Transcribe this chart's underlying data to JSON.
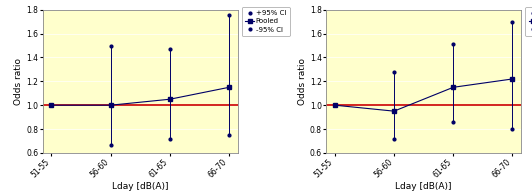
{
  "categories": [
    "51-55",
    "56-60",
    "61-65",
    "66-70"
  ],
  "chart1": {
    "pooled": [
      1.0,
      1.0,
      1.05,
      1.15
    ],
    "ci_upper": [
      1.0,
      1.5,
      1.47,
      1.76
    ],
    "ci_lower": [
      1.0,
      0.67,
      0.72,
      0.75
    ]
  },
  "chart2": {
    "pooled": [
      1.0,
      0.95,
      1.15,
      1.22
    ],
    "ci_upper": [
      1.0,
      1.28,
      1.51,
      1.7
    ],
    "ci_lower": [
      1.0,
      0.72,
      0.86,
      0.8
    ]
  },
  "ylabel": "Odds ratio",
  "xlabel": "Lday [dB(A)]",
  "ylim": [
    0.6,
    1.8
  ],
  "yticks": [
    0.6,
    0.8,
    1.0,
    1.2,
    1.4,
    1.6,
    1.8
  ],
  "ref_line": 1.0,
  "bg_color": "#ffffcc",
  "line_color": "#000066",
  "ref_color": "#cc0000",
  "legend_labels": [
    "+95% CI",
    "Pooled",
    "-95% CI"
  ],
  "outer_border_color": "#888888"
}
